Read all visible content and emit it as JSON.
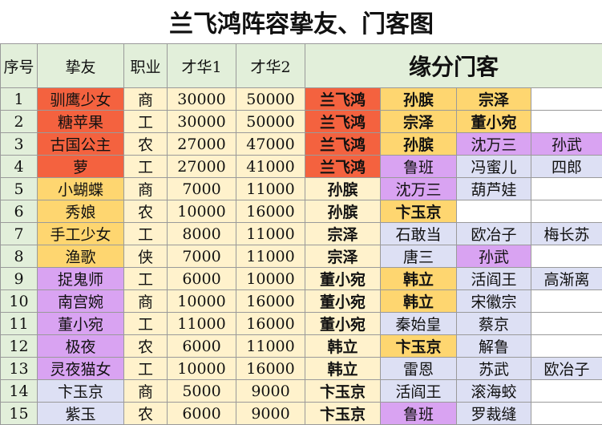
{
  "title": "兰飞鸿阵容挚友、门客图",
  "header": [
    "序号",
    "挚友",
    "职业",
    "才华1",
    "才华2",
    "缘分门客"
  ],
  "rows": [
    [
      1,
      "驯鹰少女",
      "商",
      30000,
      50000,
      "兰飞鸿",
      "孙膑",
      "宗泽"
    ],
    [
      2,
      "糖苹果",
      "工",
      30000,
      50000,
      "兰飞鸿",
      "宗泽",
      "董小宛"
    ],
    [
      3,
      "古国公主",
      "农",
      27000,
      47000,
      "兰飞鸿",
      "孙膑",
      "沈万三",
      "孙武"
    ],
    [
      4,
      "萝",
      "工",
      27000,
      41000,
      "兰飞鸿",
      "鲁班",
      "冯蜜儿",
      "四郎"
    ],
    [
      5,
      "小蝴蝶",
      "商",
      7000,
      11000,
      "孙膑",
      "沈万三",
      "葫芦娃"
    ],
    [
      6,
      "秀娘",
      "农",
      10000,
      16000,
      "孙膑",
      "卞玉京"
    ],
    [
      7,
      "手工少女",
      "工",
      8000,
      11000,
      "宗泽",
      "石敢当",
      "欧冶子",
      "梅长苏"
    ],
    [
      8,
      "渔歌",
      "侠",
      7000,
      11000,
      "宗泽",
      "唐三",
      "孙武"
    ],
    [
      9,
      "捉鬼师",
      "工",
      6000,
      10000,
      "董小宛",
      "韩立",
      "活阎王",
      "高渐离"
    ],
    [
      10,
      "南宫婉",
      "商",
      10000,
      16000,
      "董小宛",
      "韩立",
      "宋徽宗"
    ],
    [
      11,
      "董小宛",
      "工",
      11000,
      16000,
      "董小宛",
      "秦始皇",
      "蔡京"
    ],
    [
      12,
      "极夜",
      "农",
      6000,
      11000,
      "韩立",
      "卞玉京",
      "解鲁"
    ],
    [
      13,
      "灵夜猫女",
      "工",
      10000,
      16000,
      "韩立",
      "雷恩",
      "苏武",
      "欧冶子"
    ],
    [
      14,
      "卞玉京",
      "商",
      5000,
      9000,
      "卞玉京",
      "活阎王",
      "滚海蛟"
    ],
    [
      15,
      "紫玉",
      "农",
      6000,
      9000,
      "卞玉京",
      "鲁班",
      "罗裁缝"
    ]
  ]
}
